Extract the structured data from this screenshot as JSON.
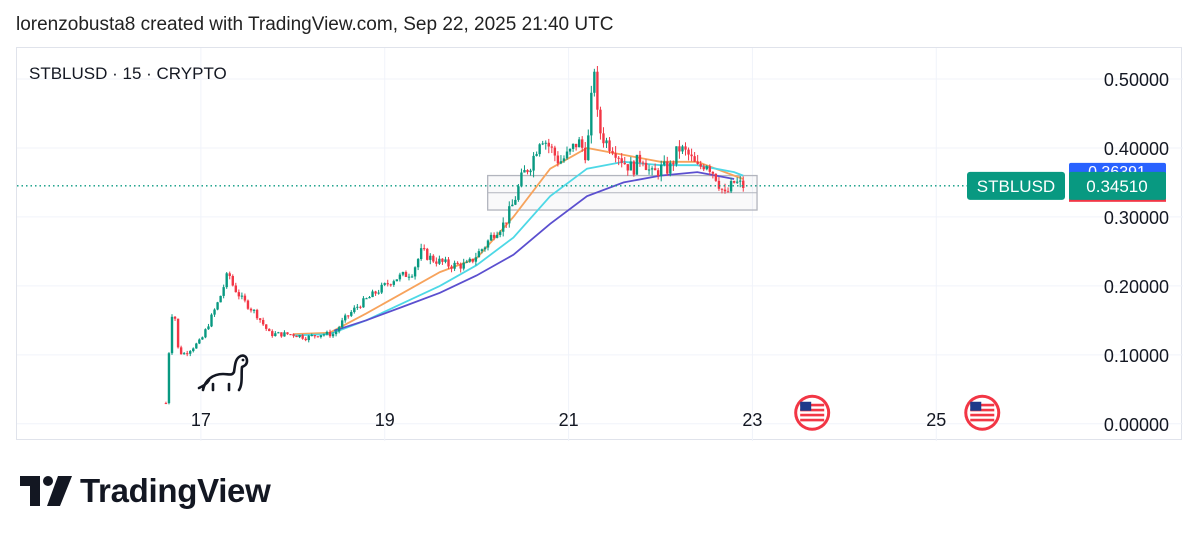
{
  "header": {
    "attribution": "lorenzobusta8 created with TradingView.com, Sep 22, 2025 21:40 UTC"
  },
  "symbol_label": "STBLUSD · 15 · CRYPTO",
  "price_tag": {
    "symbol": "STBLUSD",
    "price": "0.34510",
    "hidden_label": "0.36391",
    "colors": {
      "green": "#089981",
      "blue": "#2962ff",
      "red": "#f23645"
    }
  },
  "footer": {
    "brand": "TradingView"
  },
  "chart_data": {
    "type": "line",
    "subtype": "candlestick",
    "title": "STBLUSD · 15 · CRYPTO",
    "xlabel": "",
    "ylabel": "",
    "x_ticks": [
      "17",
      "19",
      "21",
      "23",
      "25"
    ],
    "y_ticks": [
      "0.00000",
      "0.10000",
      "0.20000",
      "0.30000",
      "0.40000",
      "0.50000"
    ],
    "xlim": [
      15.0,
      26.4
    ],
    "ylim": [
      -0.025,
      0.545
    ],
    "grid": true,
    "last_price": 0.3451,
    "price_series": {
      "x": [
        16.62,
        16.66,
        16.7,
        16.75,
        16.8,
        16.9,
        17.0,
        17.1,
        17.2,
        17.3,
        17.35,
        17.45,
        17.6,
        17.75,
        17.9,
        18.0,
        18.15,
        18.3,
        18.45,
        18.55,
        18.7,
        18.8,
        18.9,
        19.0,
        19.1,
        19.3,
        19.4,
        19.5,
        19.7,
        19.9,
        20.1,
        20.2,
        20.3,
        20.4,
        20.5,
        20.6,
        20.7,
        20.8,
        20.9,
        21.0,
        21.1,
        21.2,
        21.28,
        21.32,
        21.4,
        21.5,
        21.6,
        21.7,
        21.8,
        21.9,
        22.0,
        22.1,
        22.2,
        22.3,
        22.4,
        22.5,
        22.6,
        22.7,
        22.8,
        22.9
      ],
      "values": [
        0.03,
        0.12,
        0.18,
        0.11,
        0.1,
        0.11,
        0.12,
        0.15,
        0.18,
        0.22,
        0.2,
        0.18,
        0.16,
        0.13,
        0.13,
        0.13,
        0.125,
        0.13,
        0.13,
        0.15,
        0.17,
        0.18,
        0.19,
        0.2,
        0.21,
        0.22,
        0.25,
        0.24,
        0.23,
        0.23,
        0.26,
        0.28,
        0.29,
        0.32,
        0.36,
        0.38,
        0.42,
        0.4,
        0.38,
        0.39,
        0.41,
        0.39,
        0.52,
        0.43,
        0.41,
        0.4,
        0.38,
        0.37,
        0.39,
        0.36,
        0.37,
        0.37,
        0.4,
        0.39,
        0.37,
        0.38,
        0.36,
        0.33,
        0.35,
        0.345
      ]
    },
    "series": [
      {
        "color": "#f7a35c",
        "x": [
          18.0,
          18.4,
          18.8,
          19.2,
          19.6,
          20.0,
          20.4,
          20.8,
          21.2,
          21.6,
          22.0,
          22.4,
          22.8,
          22.9
        ],
        "values": [
          0.13,
          0.132,
          0.16,
          0.19,
          0.22,
          0.24,
          0.3,
          0.37,
          0.4,
          0.39,
          0.38,
          0.38,
          0.36,
          0.355
        ]
      },
      {
        "color": "#4dd8e6",
        "x": [
          18.0,
          18.4,
          18.8,
          19.2,
          19.6,
          20.0,
          20.4,
          20.8,
          21.2,
          21.6,
          22.0,
          22.4,
          22.8,
          22.9
        ],
        "values": [
          0.128,
          0.13,
          0.15,
          0.175,
          0.2,
          0.23,
          0.27,
          0.33,
          0.37,
          0.38,
          0.375,
          0.375,
          0.365,
          0.36
        ]
      },
      {
        "color": "#5b4fcf",
        "x": [
          18.45,
          18.8,
          19.2,
          19.6,
          20.0,
          20.4,
          20.8,
          21.2,
          21.6,
          22.0,
          22.4,
          22.8
        ],
        "values": [
          0.135,
          0.15,
          0.17,
          0.19,
          0.215,
          0.245,
          0.29,
          0.33,
          0.35,
          0.36,
          0.365,
          0.355
        ]
      }
    ],
    "range_box": {
      "x": [
        20.12,
        23.05
      ],
      "values": [
        0.31,
        0.36
      ]
    },
    "event_markers": [
      23.65,
      25.5
    ]
  }
}
